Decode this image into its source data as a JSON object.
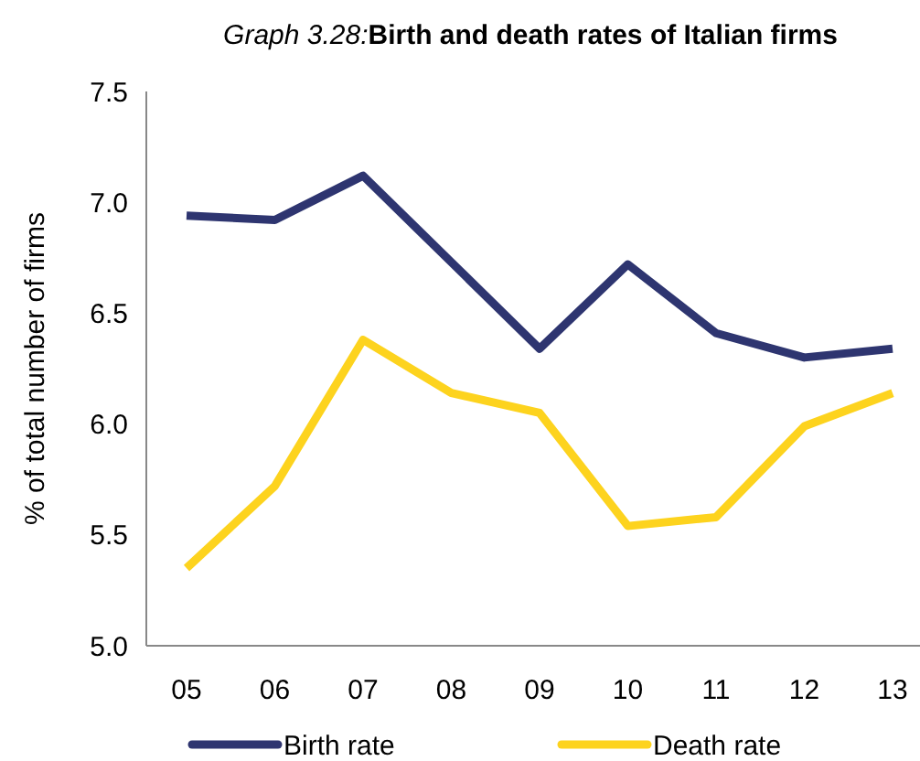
{
  "chart_data": {
    "type": "line",
    "title": "Graph 3.28:Birth and death rates of Italian firms",
    "ylabel": "% of total number of firms",
    "categories": [
      "05",
      "06",
      "07",
      "08",
      "09",
      "10",
      "11",
      "12",
      "13"
    ],
    "series": [
      {
        "name": "Birth rate",
        "color": "#2e3570",
        "values": [
          6.94,
          6.92,
          7.12,
          6.73,
          6.34,
          6.72,
          6.41,
          6.3,
          6.34
        ]
      },
      {
        "name": "Death rate",
        "color": "#fdd31e",
        "values": [
          5.35,
          5.72,
          6.38,
          6.14,
          6.05,
          5.54,
          5.58,
          5.99,
          6.14
        ]
      }
    ],
    "ylim": [
      5.0,
      7.5
    ],
    "yticks": [
      {
        "value": 5.0,
        "label": "5.0"
      },
      {
        "value": 5.5,
        "label": "5.5"
      },
      {
        "value": 6.0,
        "label": "6.0"
      },
      {
        "value": 6.5,
        "label": "6.5"
      },
      {
        "value": 7.0,
        "label": "7.0"
      },
      {
        "value": 7.5,
        "label": "7.5"
      }
    ],
    "grid": false,
    "legend": "bottom",
    "marker": "none",
    "line_style": "solid"
  }
}
